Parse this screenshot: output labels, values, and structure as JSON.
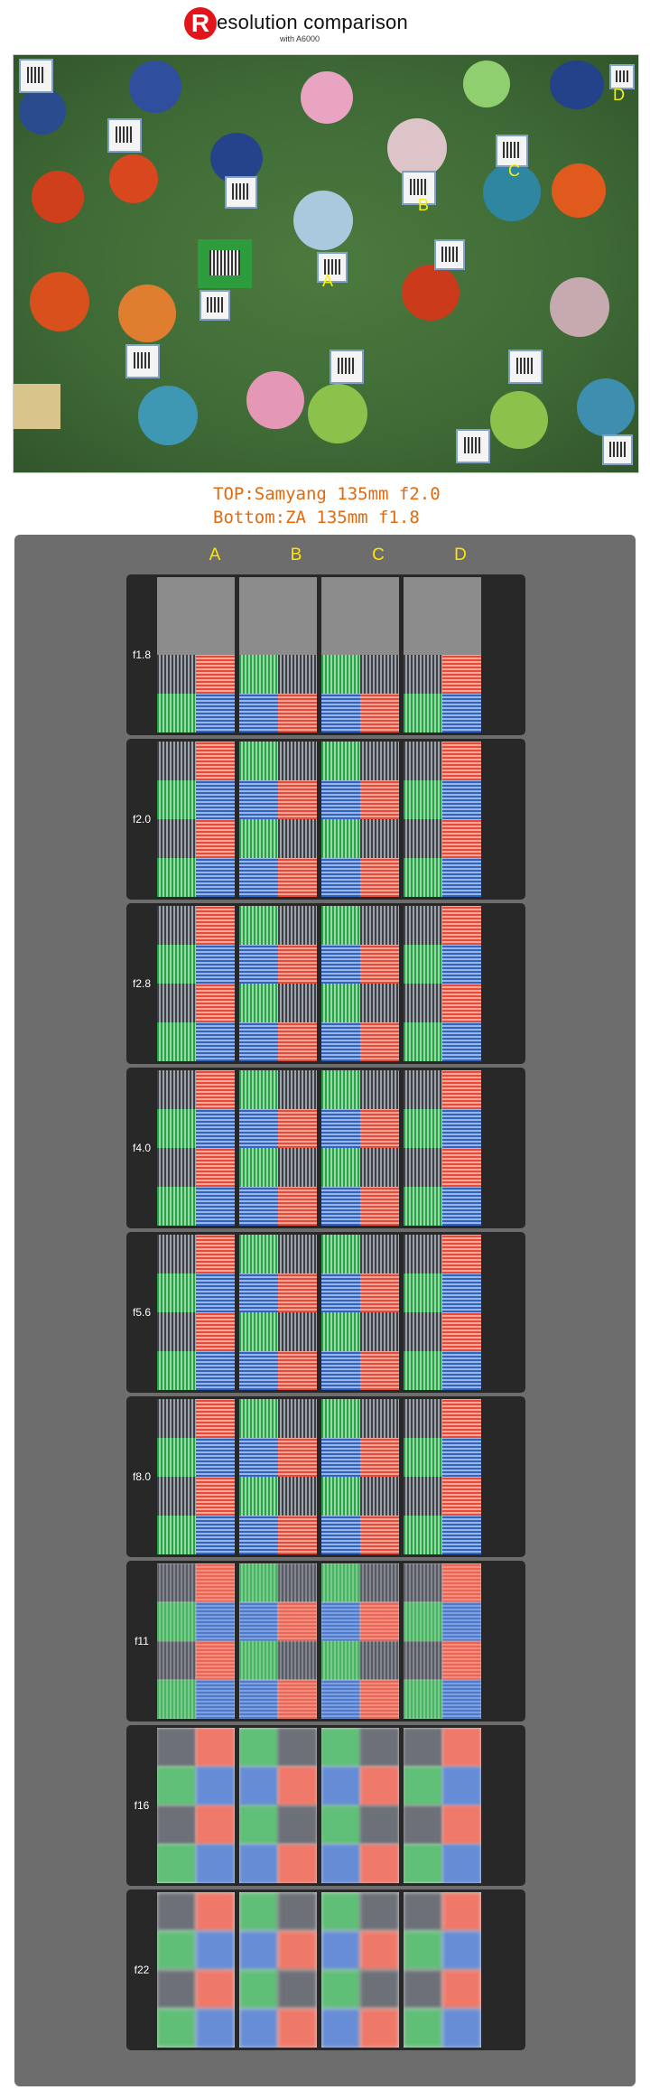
{
  "header": {
    "logo_letter": "R",
    "title_rest": "esolution comparison",
    "subtitle": "with A6000"
  },
  "photo": {
    "location_labels": [
      "A",
      "B",
      "C",
      "D"
    ]
  },
  "captions": {
    "top": "TOP:Samyang 135mm f2.0",
    "bottom": "Bottom:ZA 135mm f1.8"
  },
  "comparison": {
    "columns": [
      "A",
      "B",
      "C",
      "D"
    ],
    "apertures": [
      "f1.8",
      "f2.0",
      "f2.8",
      "f4.0",
      "f5.6",
      "f8.0",
      "f11",
      "f16",
      "f22"
    ],
    "top_missing_at": "f1.8"
  },
  "colors": {
    "logo_red": "#e3141b",
    "caption_orange": "#e06a10",
    "column_label_yellow": "#ffe600",
    "panel_gray": "#6d6d6d",
    "row_dark": "#282828"
  }
}
